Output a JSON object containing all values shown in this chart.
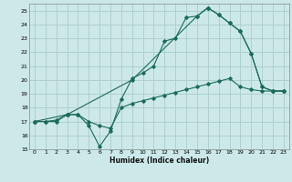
{
  "title": "",
  "xlabel": "Humidex (Indice chaleur)",
  "bg_color": "#cce8e8",
  "grid_color": "#aacccc",
  "line_color": "#1a6b5a",
  "xlim": [
    -0.5,
    23.5
  ],
  "ylim": [
    15,
    25.5
  ],
  "yticks": [
    15,
    16,
    17,
    18,
    19,
    20,
    21,
    22,
    23,
    24,
    25
  ],
  "xticks": [
    0,
    1,
    2,
    3,
    4,
    5,
    6,
    7,
    8,
    9,
    10,
    11,
    12,
    13,
    14,
    15,
    16,
    17,
    18,
    19,
    20,
    21,
    22,
    23
  ],
  "series1_x": [
    0,
    1,
    2,
    3,
    4,
    5,
    6,
    7,
    8,
    9,
    10,
    11,
    12,
    13,
    14,
    15,
    16,
    17,
    18,
    19,
    20,
    21,
    22,
    23
  ],
  "series1_y": [
    17.0,
    17.0,
    17.1,
    17.5,
    17.5,
    16.7,
    15.2,
    16.3,
    18.6,
    20.1,
    20.5,
    21.0,
    22.8,
    23.0,
    24.5,
    24.6,
    25.2,
    24.7,
    24.1,
    23.5,
    21.9,
    19.5,
    19.2,
    19.2
  ],
  "series2_x": [
    0,
    1,
    2,
    3,
    4,
    5,
    6,
    7,
    8,
    9,
    10,
    11,
    12,
    13,
    14,
    15,
    16,
    17,
    18,
    19,
    20,
    21,
    22,
    23
  ],
  "series2_y": [
    17.0,
    17.0,
    17.0,
    17.5,
    17.5,
    17.0,
    16.7,
    16.5,
    18.0,
    18.3,
    18.5,
    18.7,
    18.9,
    19.1,
    19.3,
    19.5,
    19.7,
    19.9,
    20.1,
    19.5,
    19.3,
    19.2,
    19.2,
    19.2
  ],
  "series3_x": [
    0,
    3,
    9,
    15,
    16,
    17,
    18,
    19,
    20,
    21,
    22,
    23
  ],
  "series3_y": [
    17.0,
    17.5,
    20.0,
    24.6,
    25.2,
    24.7,
    24.1,
    23.5,
    21.9,
    19.5,
    19.2,
    19.2
  ]
}
